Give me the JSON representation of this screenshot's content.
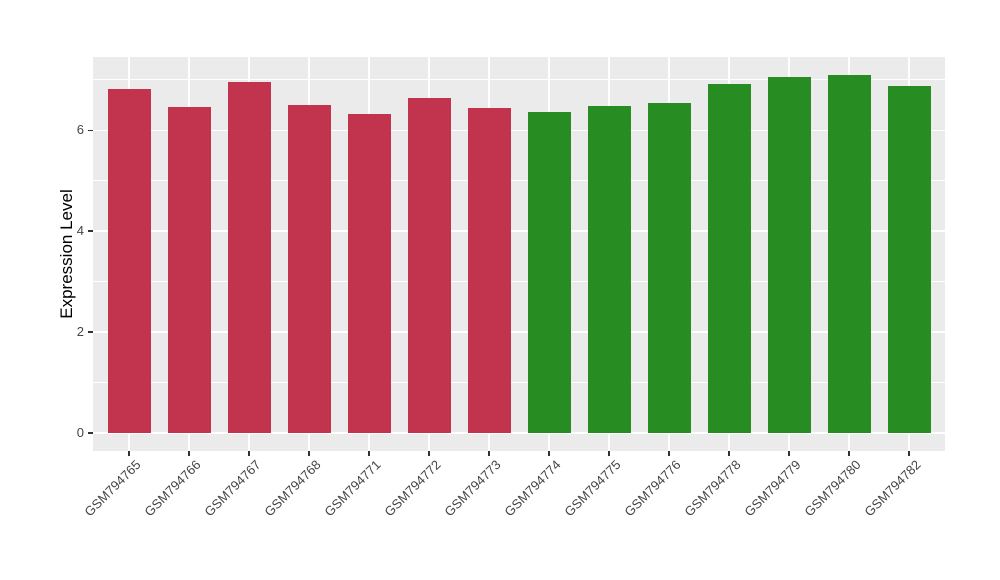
{
  "chart_data": {
    "type": "bar",
    "title": "",
    "xlabel": "",
    "ylabel": "Expression Level",
    "categories": [
      "GSM794765",
      "GSM794766",
      "GSM794767",
      "GSM794768",
      "GSM794771",
      "GSM794772",
      "GSM794773",
      "GSM794774",
      "GSM794775",
      "GSM794776",
      "GSM794778",
      "GSM794779",
      "GSM794780",
      "GSM794782"
    ],
    "values": [
      6.82,
      6.47,
      6.96,
      6.51,
      6.33,
      6.64,
      6.44,
      6.36,
      6.48,
      6.55,
      6.92,
      7.05,
      7.1,
      6.88
    ],
    "groups": [
      "red",
      "red",
      "red",
      "red",
      "red",
      "red",
      "red",
      "green",
      "green",
      "green",
      "green",
      "green",
      "green",
      "green"
    ],
    "group_colors": {
      "red": "#C2334D",
      "green": "#278C22"
    },
    "yticks": [
      0,
      2,
      4,
      6
    ],
    "yticks_minor": [
      1,
      3,
      5,
      7
    ],
    "ylim": [
      -0.35,
      7.47
    ],
    "grid": true,
    "legend": false,
    "colors": {
      "panel_bg": "#EBEBEB",
      "grid": "#FFFFFF",
      "tick_mark": "#333333",
      "axis_text": "#454545",
      "background": "#FFFFFF"
    }
  }
}
